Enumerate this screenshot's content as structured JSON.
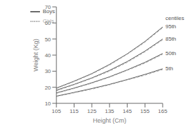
{
  "chart_data": {
    "type": "line",
    "title": "",
    "xlabel": "Height (Cm)",
    "ylabel": "Weight (Kg)",
    "x": [
      105,
      115,
      125,
      135,
      145,
      155,
      165
    ],
    "xlim": [
      105,
      165
    ],
    "ylim": [
      10,
      70
    ],
    "xticks": [
      105,
      115,
      125,
      135,
      145,
      155,
      165
    ],
    "yticks": [
      10,
      20,
      30,
      40,
      50,
      60,
      70
    ],
    "grid": false,
    "legend": "upper left",
    "annotations": [
      "centiles"
    ],
    "series": [
      {
        "name": "Boys",
        "centile": "95th",
        "color": "#555555",
        "line_style": "solid",
        "values": [
          19.5,
          23.8,
          28.5,
          34.2,
          40.8,
          48.5,
          57.5
        ]
      },
      {
        "name": "Girls",
        "centile": "95th",
        "color": "#aaaaaa",
        "line_style": "dashed",
        "values": [
          19.2,
          23.5,
          28.2,
          33.8,
          40.5,
          48.0,
          57.0
        ]
      },
      {
        "name": "Boys",
        "centile": "85th",
        "color": "#555555",
        "line_style": "solid",
        "values": [
          18.2,
          21.8,
          25.8,
          30.5,
          36.0,
          42.5,
          50.0
        ]
      },
      {
        "name": "Girls",
        "centile": "85th",
        "color": "#aaaaaa",
        "line_style": "dashed",
        "values": [
          17.8,
          21.5,
          25.5,
          30.0,
          35.5,
          42.0,
          49.5
        ]
      },
      {
        "name": "Boys",
        "centile": "50th",
        "color": "#555555",
        "line_style": "solid",
        "values": [
          16.5,
          19.5,
          22.8,
          26.5,
          30.8,
          35.5,
          41.0
        ]
      },
      {
        "name": "Girls",
        "centile": "50th",
        "color": "#aaaaaa",
        "line_style": "dashed",
        "values": [
          16.2,
          19.2,
          22.5,
          26.2,
          30.5,
          35.0,
          40.5
        ]
      },
      {
        "name": "Boys",
        "centile": "5th",
        "color": "#555555",
        "line_style": "solid",
        "values": [
          14.5,
          16.8,
          19.2,
          21.8,
          24.8,
          28.0,
          31.5
        ]
      },
      {
        "name": "Girls",
        "centile": "5th",
        "color": "#aaaaaa",
        "line_style": "dashed",
        "values": [
          14.2,
          16.5,
          18.8,
          21.5,
          24.5,
          27.5,
          31.0
        ]
      }
    ]
  }
}
